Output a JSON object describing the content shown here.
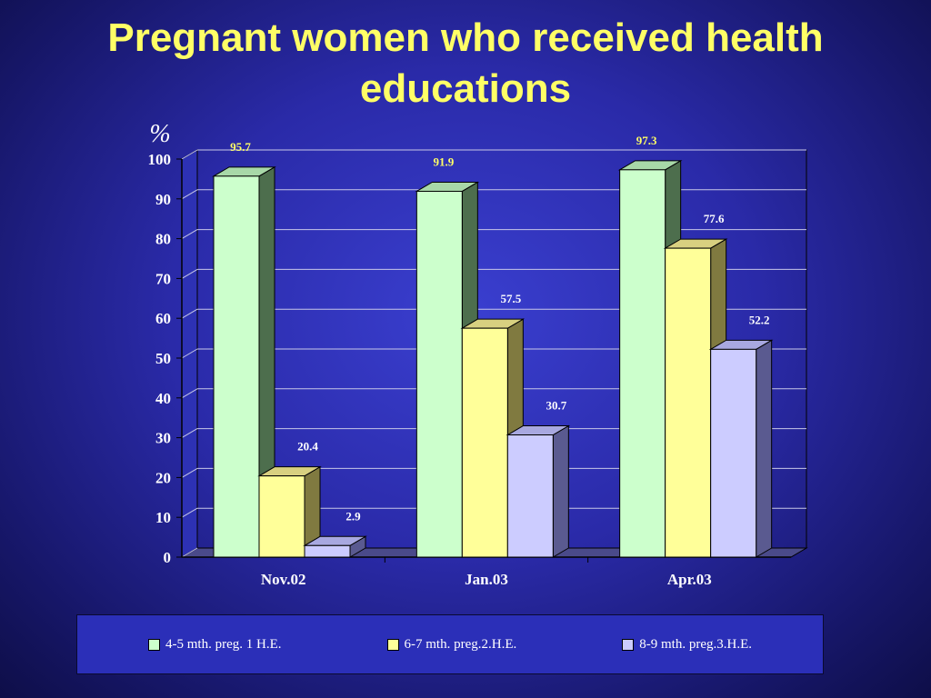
{
  "title": "Pregnant women who received health educations",
  "chart_data": {
    "type": "bar",
    "title": "Pregnant women who received health educations",
    "ylabel": "%",
    "xlabel": "",
    "ylim": [
      0,
      100
    ],
    "yticks": [
      0,
      10,
      20,
      30,
      40,
      50,
      60,
      70,
      80,
      90,
      100
    ],
    "categories": [
      "Nov.02",
      "Jan.03",
      "Apr.03"
    ],
    "series": [
      {
        "name": "4-5 mth. preg. 1 H.E.",
        "values": [
          95.7,
          91.9,
          97.3
        ],
        "color": "#ccffcc",
        "side": "#4d6e4d",
        "top": "#a8d8a8"
      },
      {
        "name": "6-7 mth. preg.2.H.E.",
        "values": [
          20.4,
          57.5,
          77.6
        ],
        "color": "#ffff99",
        "side": "#807a40",
        "top": "#d8d080"
      },
      {
        "name": "8-9 mth. preg.3.H.E.",
        "values": [
          2.9,
          30.7,
          52.2
        ],
        "color": "#ccccff",
        "side": "#5a5a90",
        "top": "#a8a8e0"
      }
    ],
    "grid": true,
    "legend": "bottom",
    "style": "3d-column"
  }
}
